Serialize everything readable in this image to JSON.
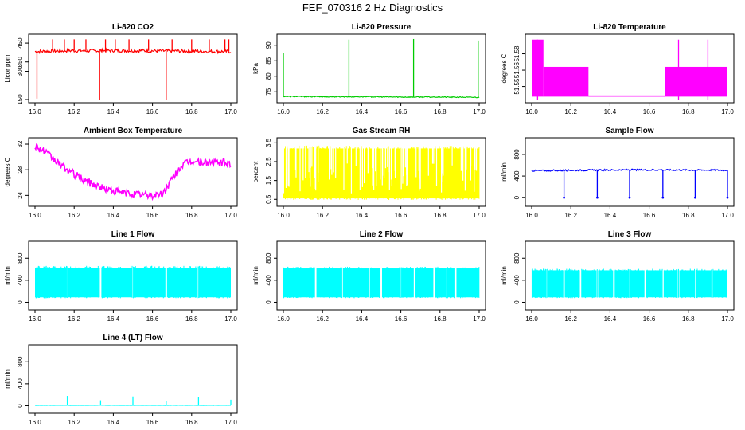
{
  "title": "FEF_070316  2 Hz Diagnostics",
  "colors": {
    "co2": "#ff0000",
    "pressure": "#00cc00",
    "temperature": "#ff00ff",
    "ambient": "#ff00ff",
    "rh": "#ffff00",
    "sample_flow": "#0000ff",
    "line_flow": "#00ffff"
  },
  "chart_data": [
    {
      "id": "co2",
      "type": "line",
      "title": "Li-820 CO2",
      "ylabel": "Licor ppm",
      "xlim": [
        16.0,
        17.0
      ],
      "ylim": [
        150,
        480
      ],
      "xticks": [
        "16.0",
        "16.2",
        "16.4",
        "16.6",
        "16.8",
        "17.0"
      ],
      "yticks": [
        {
          "v": 150,
          "label": "150"
        },
        {
          "v": 300,
          "label": "300"
        },
        {
          "v": 350,
          "label": "350"
        },
        {
          "v": 450,
          "label": "450"
        }
      ],
      "x": [
        16.0,
        16.1,
        16.2,
        16.3,
        16.4,
        16.5,
        16.6,
        16.7,
        16.8,
        16.9,
        17.0
      ],
      "values": [
        405,
        408,
        410,
        409,
        411,
        410,
        409,
        408,
        407,
        406,
        405
      ],
      "noise": 9,
      "spikes_up": [
        16.09,
        16.15,
        16.2,
        16.26,
        16.36,
        16.41,
        16.48,
        16.58,
        16.7,
        16.8,
        16.89,
        16.97,
        16.99
      ],
      "spike_up_value": 470,
      "spikes_down": [
        {
          "x": 16.01,
          "v": 155
        },
        {
          "x": 16.33,
          "v": 150
        },
        {
          "x": 16.67,
          "v": 148
        }
      ],
      "color_key": "co2"
    },
    {
      "id": "pressure",
      "type": "line",
      "title": "Li-820 Pressure",
      "ylabel": "kPa",
      "xlim": [
        16.0,
        17.0
      ],
      "ylim": [
        72.5,
        92.5
      ],
      "xticks": [
        "16.0",
        "16.2",
        "16.4",
        "16.6",
        "16.8",
        "17.0"
      ],
      "yticks": [
        {
          "v": 75,
          "label": "75"
        },
        {
          "v": 80,
          "label": "80"
        },
        {
          "v": 85,
          "label": "85"
        },
        {
          "v": 90,
          "label": "90"
        }
      ],
      "x": [
        16.0,
        16.2,
        16.4,
        16.6,
        16.8,
        17.0
      ],
      "values": [
        73.5,
        73.4,
        73.4,
        73.3,
        73.3,
        73.2
      ],
      "noise": 0.15,
      "spikes_up": [
        {
          "x": 16.0,
          "v": 87.5
        },
        {
          "x": 16.335,
          "v": 91.8
        },
        {
          "x": 16.665,
          "v": 92.0
        },
        {
          "x": 16.995,
          "v": 91.5
        }
      ],
      "color_key": "pressure"
    },
    {
      "id": "temperature",
      "type": "area",
      "title": "Li-820 Temperature",
      "ylabel": "degrees C",
      "xlim": [
        16.0,
        17.0
      ],
      "ylim": [
        51.538,
        51.595
      ],
      "xticks": [
        "16.0",
        "16.2",
        "16.4",
        "16.6",
        "16.8",
        "17.0"
      ],
      "yticks": [
        {
          "v": 51.55,
          "label": "51.55"
        },
        {
          "v": 51.565,
          "label": "51.56"
        },
        {
          "v": 51.58,
          "label": "51.58"
        }
      ],
      "bands": [
        {
          "x0": 16.0,
          "x1": 16.06,
          "lo": 51.541,
          "hi": 51.593
        },
        {
          "x0": 16.06,
          "x1": 16.29,
          "lo": 51.541,
          "hi": 51.568
        },
        {
          "x0": 16.29,
          "x1": 16.68,
          "lo": 51.541,
          "hi": 51.5415
        },
        {
          "x0": 16.68,
          "x1": 17.0,
          "lo": 51.541,
          "hi": 51.568
        }
      ],
      "spikes_up": [
        {
          "x": 16.03,
          "v": 51.593
        },
        {
          "x": 16.75,
          "v": 51.593
        },
        {
          "x": 16.9,
          "v": 51.593
        }
      ],
      "color_key": "temperature"
    },
    {
      "id": "ambient",
      "type": "line",
      "title": "Ambient Box Temperature",
      "ylabel": "degrees C",
      "xlim": [
        16.0,
        17.0
      ],
      "ylim": [
        22.8,
        32.5
      ],
      "xticks": [
        "16.0",
        "16.2",
        "16.4",
        "16.6",
        "16.8",
        "17.0"
      ],
      "yticks": [
        {
          "v": 24,
          "label": "24"
        },
        {
          "v": 28,
          "label": "28"
        },
        {
          "v": 32,
          "label": "32"
        }
      ],
      "x": [
        16.0,
        16.05,
        16.1,
        16.15,
        16.2,
        16.25,
        16.3,
        16.35,
        16.4,
        16.45,
        16.5,
        16.55,
        16.6,
        16.65,
        16.7,
        16.75,
        16.8,
        16.85,
        16.9,
        16.95,
        17.0
      ],
      "values": [
        31.8,
        30.8,
        29.5,
        28.3,
        27.3,
        26.4,
        25.7,
        25.1,
        24.7,
        24.4,
        24.2,
        24.1,
        24.0,
        24.2,
        26.5,
        28.7,
        29.3,
        29.2,
        29.1,
        29.1,
        29.0
      ],
      "noise": 0.6,
      "color_key": "ambient"
    },
    {
      "id": "rh",
      "type": "area",
      "title": "Gas Stream RH",
      "ylabel": "percent",
      "xlim": [
        16.0,
        17.0
      ],
      "ylim": [
        0.3,
        3.6
      ],
      "xticks": [
        "16.0",
        "16.2",
        "16.4",
        "16.6",
        "16.8",
        "17.0"
      ],
      "yticks": [
        {
          "v": 0.5,
          "label": "0.5"
        },
        {
          "v": 1.5,
          "label": "1.5"
        },
        {
          "v": 2.5,
          "label": "2.5"
        },
        {
          "v": 3.5,
          "label": "3.5"
        }
      ],
      "fill_lo": 0.55,
      "fill_hi": 3.2,
      "color_key": "rh"
    },
    {
      "id": "sample_flow",
      "type": "line",
      "title": "Sample Flow",
      "ylabel": "ml/min",
      "xlim": [
        16.0,
        17.0
      ],
      "ylim": [
        -100,
        1050
      ],
      "xticks": [
        "16.0",
        "16.2",
        "16.4",
        "16.6",
        "16.8",
        "17.0"
      ],
      "yticks": [
        {
          "v": 0,
          "label": "0"
        },
        {
          "v": 400,
          "label": "400"
        },
        {
          "v": 800,
          "label": "800"
        }
      ],
      "x": [
        16.0,
        16.5,
        17.0
      ],
      "values": [
        500,
        515,
        510
      ],
      "noise": 14,
      "spikes_down": [
        {
          "x": 16.165,
          "v": 0
        },
        {
          "x": 16.335,
          "v": 0
        },
        {
          "x": 16.5,
          "v": 0
        },
        {
          "x": 16.67,
          "v": 0
        },
        {
          "x": 16.835,
          "v": 0
        },
        {
          "x": 17.0,
          "v": 0
        }
      ],
      "color_key": "sample_flow"
    },
    {
      "id": "line1",
      "type": "area",
      "title": "Line 1 Flow",
      "ylabel": "ml/min",
      "xlim": [
        16.0,
        17.0
      ],
      "ylim": [
        -80,
        1050
      ],
      "xticks": [
        "16.0",
        "16.2",
        "16.4",
        "16.6",
        "16.8",
        "17.0"
      ],
      "yticks": [
        {
          "v": 0,
          "label": "0"
        },
        {
          "v": 400,
          "label": "400"
        },
        {
          "v": 800,
          "label": "800"
        }
      ],
      "fill_lo": 90,
      "fill_hi": 630,
      "gaps": [
        16.165,
        16.335,
        16.5,
        16.67,
        16.835
      ],
      "color_key": "line_flow"
    },
    {
      "id": "line2",
      "type": "area",
      "title": "Line 2 Flow",
      "ylabel": "ml/min",
      "xlim": [
        16.0,
        17.0
      ],
      "ylim": [
        -80,
        1050
      ],
      "xticks": [
        "16.0",
        "16.2",
        "16.4",
        "16.6",
        "16.8",
        "17.0"
      ],
      "yticks": [
        {
          "v": 0,
          "label": "0"
        },
        {
          "v": 400,
          "label": "400"
        },
        {
          "v": 800,
          "label": "800"
        }
      ],
      "fill_lo": 90,
      "fill_hi": 615,
      "gaps": [
        16.165,
        16.3,
        16.335,
        16.44,
        16.5,
        16.6,
        16.67,
        16.77,
        16.835,
        16.88
      ],
      "color_key": "line_flow"
    },
    {
      "id": "line3",
      "type": "area",
      "title": "Line 3 Flow",
      "ylabel": "ml/min",
      "xlim": [
        16.0,
        17.0
      ],
      "ylim": [
        -80,
        1050
      ],
      "xticks": [
        "16.0",
        "16.2",
        "16.4",
        "16.6",
        "16.8",
        "17.0"
      ],
      "yticks": [
        {
          "v": 0,
          "label": "0"
        },
        {
          "v": 400,
          "label": "400"
        },
        {
          "v": 800,
          "label": "800"
        }
      ],
      "fill_lo": 90,
      "fill_hi": 580,
      "gaps": [
        16.08,
        16.165,
        16.25,
        16.335,
        16.42,
        16.5,
        16.58,
        16.67,
        16.75,
        16.835,
        16.92
      ],
      "color_key": "line_flow"
    },
    {
      "id": "line4",
      "type": "line",
      "title": "Line 4 (LT) Flow",
      "ylabel": "ml/min",
      "xlim": [
        16.0,
        17.0
      ],
      "ylim": [
        -80,
        1050
      ],
      "xticks": [
        "16.0",
        "16.2",
        "16.4",
        "16.6",
        "16.8",
        "17.0"
      ],
      "yticks": [
        {
          "v": 0,
          "label": "0"
        },
        {
          "v": 400,
          "label": "400"
        },
        {
          "v": 800,
          "label": "800"
        }
      ],
      "x": [
        16.0,
        17.0
      ],
      "values": [
        8,
        8
      ],
      "noise": 2,
      "spikes_up": [
        {
          "x": 16.165,
          "v": 180
        },
        {
          "x": 16.335,
          "v": 100
        },
        {
          "x": 16.5,
          "v": 170
        },
        {
          "x": 16.67,
          "v": 90
        },
        {
          "x": 16.835,
          "v": 160
        },
        {
          "x": 17.0,
          "v": 110
        }
      ],
      "color_key": "line_flow"
    }
  ]
}
